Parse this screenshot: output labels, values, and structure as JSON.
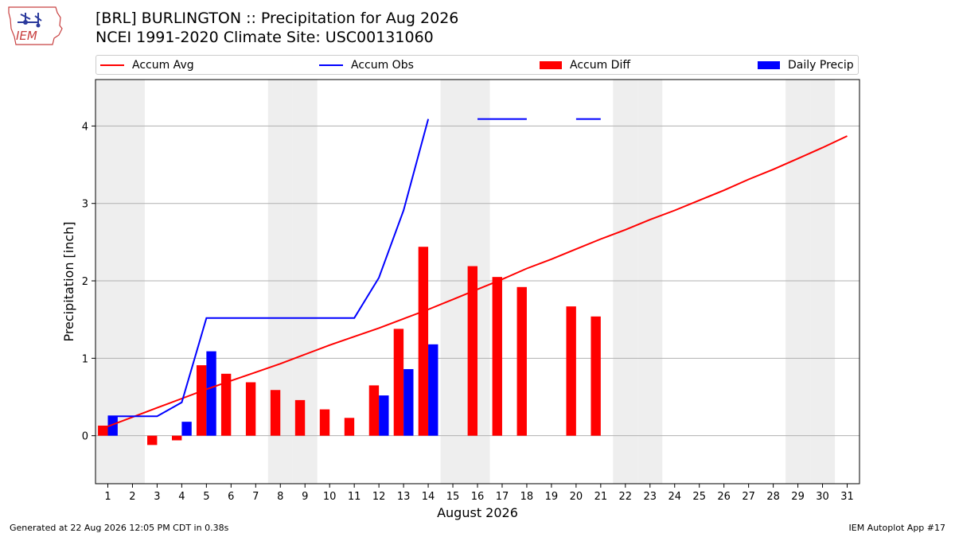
{
  "header": {
    "title": "[BRL] BURLINGTON :: Precipitation for Aug 2026",
    "subtitle": "NCEI 1991-2020 Climate Site: USC00131060",
    "logo_text": "IEM"
  },
  "footer": {
    "generated": "Generated at 22 Aug 2026 12:05 PM CDT in 0.38s",
    "app": "IEM Autoplot App #17"
  },
  "colors": {
    "avg": "#ff0000",
    "obs": "#0000ff",
    "diff": "#ff0000",
    "daily": "#0000ff",
    "weekend": "#eeeeee",
    "grid": "#b0b0b0"
  },
  "chart_data": {
    "type": "bar",
    "title": "[BRL] BURLINGTON :: Precipitation for Aug 2026",
    "subtitle": "NCEI 1991-2020 Climate Site: USC00131060",
    "xlabel": "August 2026",
    "ylabel": "Precipitation [inch]",
    "xlim": [
      0.5,
      31.5
    ],
    "ylim": [
      -0.62,
      4.6
    ],
    "yticks": [
      0,
      1,
      2,
      3,
      4
    ],
    "grid": "horizontal",
    "legend_position": "top",
    "x": [
      1,
      2,
      3,
      4,
      5,
      6,
      7,
      8,
      9,
      10,
      11,
      12,
      13,
      14,
      15,
      16,
      17,
      18,
      19,
      20,
      21,
      22,
      23,
      24,
      25,
      26,
      27,
      28,
      29,
      30,
      31
    ],
    "weekend_days": [
      1,
      2,
      8,
      9,
      15,
      16,
      22,
      23,
      29,
      30
    ],
    "series": [
      {
        "name": "Accum Avg",
        "kind": "line",
        "values": [
          0.12,
          0.24,
          0.36,
          0.48,
          0.6,
          0.71,
          0.82,
          0.93,
          1.05,
          1.17,
          1.28,
          1.39,
          1.51,
          1.63,
          1.76,
          1.89,
          2.02,
          2.16,
          2.28,
          2.41,
          2.54,
          2.66,
          2.79,
          2.91,
          3.04,
          3.17,
          3.31,
          3.44,
          3.58,
          3.72,
          3.87
        ]
      },
      {
        "name": "Accum Obs",
        "kind": "line",
        "values": [
          0.25,
          0.25,
          0.25,
          0.43,
          1.52,
          1.52,
          1.52,
          1.52,
          1.52,
          1.52,
          1.52,
          2.04,
          2.91,
          4.09,
          null,
          4.09,
          4.09,
          4.09,
          null,
          4.09,
          4.09,
          null,
          null,
          null,
          null,
          null,
          null,
          null,
          null,
          null,
          null
        ]
      },
      {
        "name": "Accum Diff",
        "kind": "bar",
        "values": [
          0.13,
          null,
          -0.12,
          -0.06,
          0.91,
          0.8,
          0.69,
          0.59,
          0.46,
          0.34,
          0.23,
          0.65,
          1.38,
          2.44,
          null,
          2.19,
          2.05,
          1.92,
          null,
          1.67,
          1.54,
          null,
          null,
          null,
          null,
          null,
          null,
          null,
          null,
          null,
          null
        ]
      },
      {
        "name": "Daily Precip",
        "kind": "bar",
        "values": [
          0.25,
          null,
          null,
          0.18,
          1.09,
          null,
          null,
          null,
          null,
          null,
          null,
          0.52,
          0.86,
          1.18,
          null,
          null,
          null,
          null,
          null,
          null,
          null,
          null,
          null,
          null,
          null,
          null,
          null,
          null,
          null,
          null,
          null
        ]
      }
    ]
  }
}
